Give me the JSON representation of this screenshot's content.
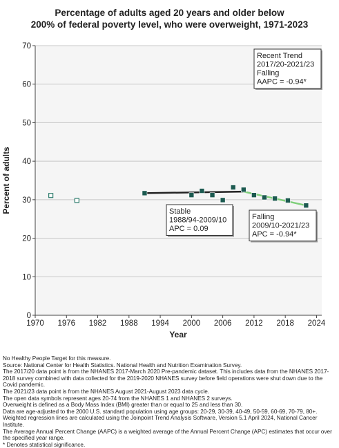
{
  "title_lines": [
    "Percentage of adults aged 20 years and older below",
    "200% of federal poverty level, who were overweight, 1971-2023"
  ],
  "chart_data": {
    "type": "scatter",
    "xlabel": "Year",
    "ylabel": "Percent of adults",
    "xlim": [
      1970,
      2025
    ],
    "ylim": [
      0,
      70
    ],
    "xticks": [
      1970,
      1976,
      1982,
      1988,
      1994,
      2000,
      2006,
      2012,
      2018,
      2024
    ],
    "yticks": [
      0,
      10,
      20,
      30,
      40,
      50,
      60,
      70
    ],
    "grid": "horizontal",
    "open_points": [
      {
        "x": 1973,
        "y": 31.1
      },
      {
        "x": 1978,
        "y": 29.8
      }
    ],
    "filled_points": [
      {
        "x": 1991,
        "y": 31.7
      },
      {
        "x": 2000,
        "y": 31.2
      },
      {
        "x": 2002,
        "y": 32.3
      },
      {
        "x": 2004,
        "y": 31.2
      },
      {
        "x": 2006,
        "y": 29.9
      },
      {
        "x": 2008,
        "y": 33.2
      },
      {
        "x": 2010,
        "y": 32.6
      },
      {
        "x": 2012,
        "y": 31.2
      },
      {
        "x": 2014,
        "y": 30.6
      },
      {
        "x": 2016,
        "y": 30.3
      },
      {
        "x": 2018.5,
        "y": 29.8
      },
      {
        "x": 2022,
        "y": 28.5
      }
    ],
    "trend_segments": [
      {
        "label": "Stable",
        "x": [
          1991,
          2010
        ],
        "y": [
          31.7,
          32.1
        ],
        "color": "#222222"
      },
      {
        "label": "Falling",
        "x": [
          2010,
          2022
        ],
        "y": [
          32.1,
          28.5
        ],
        "color": "#7fcf7a"
      }
    ],
    "annotations": [
      {
        "key": "stable",
        "lines": [
          "Stable",
          "1988/94-2009/10",
          "APC =  0.09"
        ]
      },
      {
        "key": "falling",
        "lines": [
          "Falling",
          "2009/10-2021/23",
          "APC = -0.94*"
        ]
      },
      {
        "key": "recent",
        "lines": [
          "Recent Trend",
          "2017/20-2021/23",
          "Falling",
          "AAPC = -0.94*"
        ]
      }
    ],
    "colors": {
      "point_fill": "#1c5a50",
      "point_open_stroke": "#2a7a6a",
      "trend_stable": "#222222",
      "trend_falling": "#7fcf7a",
      "grid": "#c8c8c8",
      "plot_bg": "#f5f5f5"
    }
  },
  "notes": [
    "No Healthy People Target for this measure.",
    "Source: National Center for Health Statistics. National Health and Nutrition Examination Survey.",
    "The 2017/20 data point is from the NHANES 2017-March 2020 Pre-pandemic dataset. This includes data from the NHANES 2017-2018 survey combined with data collected for the 2019-2020 NHANES survey before field operations were shut down due to the Covid pandemic.",
    "The 2021/23 data point is from the NHANES August 2021-August 2023 data cycle.",
    "The open data symbols represent ages 20-74 from the NHANES 1 and NHANES 2 surveys.",
    "Overweight is defined as a Body Mass Index (BMI) greater than or equal to 25 and less than 30.",
    "Data are age-adjusted to the 2000 U.S. standard population using age groups: 20-29, 30-39, 40-49, 50-59, 60-69, 70-79, 80+.",
    "Weighted regression lines are calculated using the Joinpoint Trend Analysis Software, Version 5.1 April 2024, National Cancer Institute.",
    "The Average Annual Percent Change (AAPC) is a weighted average of the Annual Percent Change (APC) estimates that occur over the specified year range.",
    "* Denotes statistical significance."
  ]
}
